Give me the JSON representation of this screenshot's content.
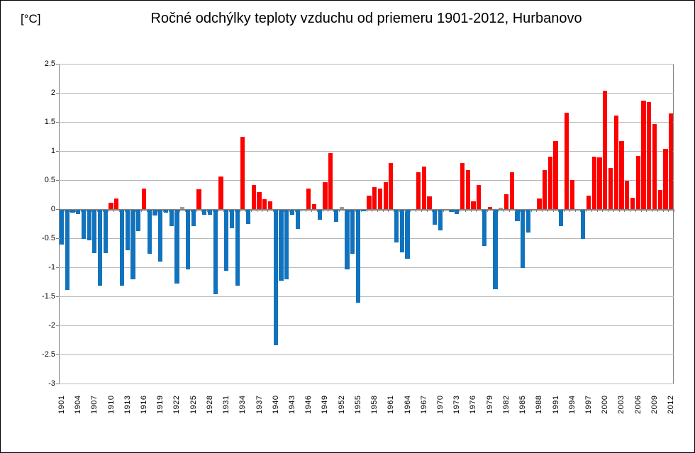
{
  "chart": {
    "title": "Ročné odchýlky teploty vzduchu od priemeru 1901-2012, Hurbanovo",
    "unit_label": "[°C]"
  },
  "chart_data": {
    "type": "bar",
    "title": "Ročné odchýlky teploty vzduchu od priemeru 1901-2012, Hurbanovo",
    "xlabel": "",
    "ylabel": "[°C]",
    "start_year": 1901,
    "end_year": 2012,
    "ylim": [
      -3,
      2.5
    ],
    "grid": true,
    "legend": false,
    "y_tick_labels": [
      "2.5",
      "2",
      "1.5",
      "1",
      "0.5",
      "0",
      "-0.5",
      "-1",
      "-1.5",
      "-2",
      "-2.5",
      "-3"
    ],
    "y_tick_values": [
      2.5,
      2,
      1.5,
      1,
      0.5,
      0,
      -0.5,
      -1,
      -1.5,
      -2,
      -2.5,
      -3
    ],
    "x_tick_labels": [
      "1901",
      "1904",
      "1907",
      "1910",
      "1913",
      "1916",
      "1919",
      "1922",
      "1925",
      "1928",
      "1931",
      "1934",
      "1937",
      "1940",
      "1943",
      "1946",
      "1949",
      "1952",
      "1955",
      "1958",
      "1961",
      "1964",
      "1967",
      "1970",
      "1973",
      "1976",
      "1979",
      "1982",
      "1985",
      "1988",
      "1991",
      "1994",
      "1997",
      "2000",
      "2003",
      "2006",
      "2009",
      "2012"
    ],
    "values": [
      -0.6,
      -1.38,
      -0.05,
      -0.07,
      -0.5,
      -0.52,
      -0.74,
      -1.3,
      -0.74,
      0.11,
      0.18,
      -1.31,
      -0.7,
      -1.2,
      -0.36,
      0.35,
      -0.76,
      -0.1,
      -0.89,
      -0.05,
      -0.28,
      -1.27,
      0.04,
      -1.02,
      -0.28,
      0.34,
      -0.08,
      -0.08,
      -1.45,
      0.56,
      -1.05,
      -0.32,
      -1.3,
      1.24,
      -0.24,
      0.42,
      0.29,
      0.17,
      0.13,
      -2.33,
      -1.22,
      -1.19,
      -0.09,
      -0.33,
      0.0,
      0.35,
      0.09,
      -0.17,
      0.46,
      0.96,
      -0.21,
      0.04,
      -1.02,
      -0.75,
      -1.6,
      -0.02,
      0.23,
      0.38,
      0.35,
      0.46,
      0.79,
      -0.56,
      -0.73,
      -0.84,
      0.0,
      0.63,
      0.73,
      0.22,
      -0.26,
      -0.35,
      0.0,
      -0.04,
      -0.07,
      0.79,
      0.67,
      0.14,
      0.42,
      -0.62,
      0.04,
      -1.37,
      0.03,
      0.26,
      0.63,
      -0.19,
      -1.0,
      -0.39,
      0.0,
      0.18,
      0.67,
      0.9,
      1.17,
      -0.28,
      1.66,
      0.5,
      0.0,
      -0.5,
      0.23,
      0.9,
      0.89,
      2.04,
      0.71,
      1.61,
      1.17,
      0.49,
      0.19,
      0.91,
      1.87,
      1.84,
      1.46,
      0.33,
      1.04,
      1.65
    ],
    "gray_years": [
      1923,
      1952,
      1981
    ],
    "colors": {
      "positive": "#FF0000",
      "negative": "#1173BD",
      "near_zero_gray": "#9B9B9B",
      "gridline": "#B9B9B9",
      "axis": "#808080",
      "text": "#000000"
    }
  }
}
